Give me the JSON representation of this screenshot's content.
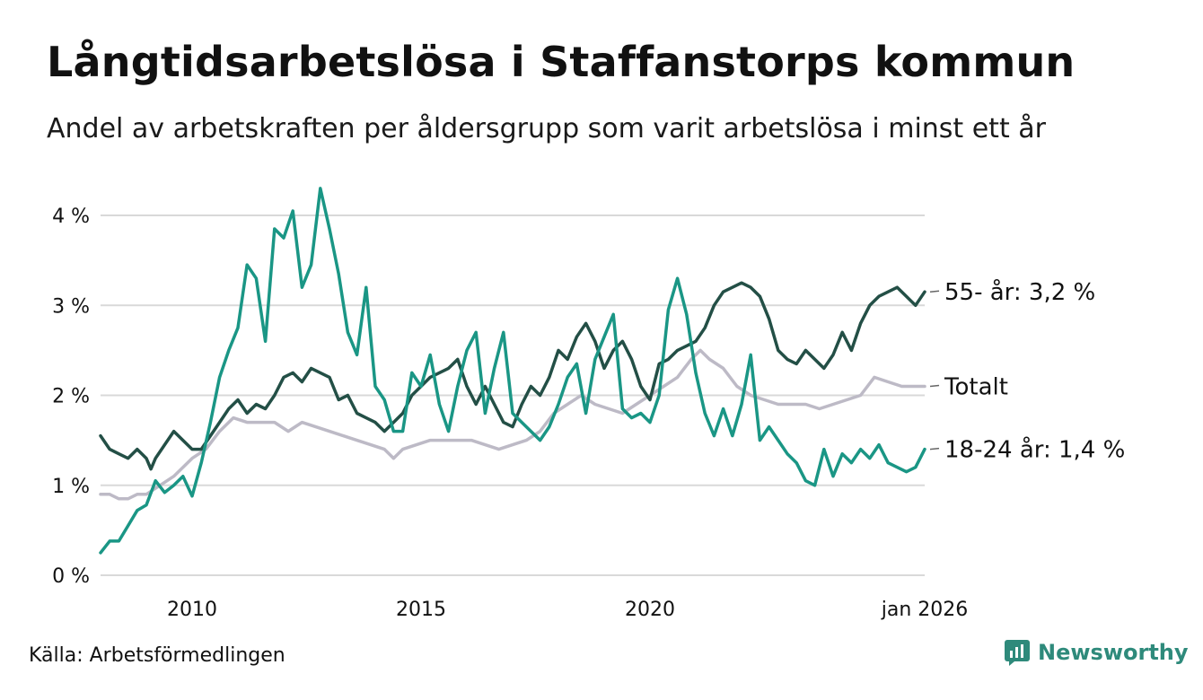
{
  "title": "Långtidsarbetslösa i Staffanstorps kommun",
  "subtitle": "Andel av arbetskraften per åldersgrupp som varit arbetslösa i minst ett år",
  "source": "Källa: Arbetsförmedlingen",
  "brand": "Newsworthy",
  "colors": {
    "age55": "#234f46",
    "total": "#bdbac6",
    "age1824": "#1a9685",
    "grid": "#d9d9d9",
    "brand": "#2e8a7b"
  },
  "chart_data": {
    "type": "line",
    "title": "Långtidsarbetslösa i Staffanstorps kommun",
    "xlabel": "",
    "ylabel": "",
    "xlim": [
      2008.0,
      2026.0
    ],
    "ylim": [
      0,
      4
    ],
    "y_ticks": [
      {
        "value": 0,
        "label": "0 %"
      },
      {
        "value": 1,
        "label": "1 %"
      },
      {
        "value": 2,
        "label": "2 %"
      },
      {
        "value": 3,
        "label": "3 %"
      },
      {
        "value": 4,
        "label": "4 %"
      }
    ],
    "x_ticks": [
      {
        "value": 2010,
        "label": "2010"
      },
      {
        "value": 2015,
        "label": "2015"
      },
      {
        "value": 2020,
        "label": "2020"
      },
      {
        "value": 2026,
        "label": "jan 2026"
      }
    ],
    "series": [
      {
        "name": "Totalt",
        "label": "Totalt",
        "color_key": "total",
        "points": [
          [
            2008.0,
            0.9
          ],
          [
            2008.2,
            0.9
          ],
          [
            2008.4,
            0.85
          ],
          [
            2008.6,
            0.85
          ],
          [
            2008.8,
            0.9
          ],
          [
            2009.0,
            0.9
          ],
          [
            2009.3,
            1.0
          ],
          [
            2009.6,
            1.1
          ],
          [
            2009.8,
            1.2
          ],
          [
            2010.0,
            1.3
          ],
          [
            2010.3,
            1.4
          ],
          [
            2010.6,
            1.6
          ],
          [
            2010.9,
            1.75
          ],
          [
            2011.2,
            1.7
          ],
          [
            2011.5,
            1.7
          ],
          [
            2011.8,
            1.7
          ],
          [
            2012.1,
            1.6
          ],
          [
            2012.4,
            1.7
          ],
          [
            2012.7,
            1.65
          ],
          [
            2013.0,
            1.6
          ],
          [
            2013.3,
            1.55
          ],
          [
            2013.6,
            1.5
          ],
          [
            2013.9,
            1.45
          ],
          [
            2014.2,
            1.4
          ],
          [
            2014.4,
            1.3
          ],
          [
            2014.6,
            1.4
          ],
          [
            2014.9,
            1.45
          ],
          [
            2015.2,
            1.5
          ],
          [
            2015.5,
            1.5
          ],
          [
            2015.8,
            1.5
          ],
          [
            2016.1,
            1.5
          ],
          [
            2016.4,
            1.45
          ],
          [
            2016.7,
            1.4
          ],
          [
            2017.0,
            1.45
          ],
          [
            2017.3,
            1.5
          ],
          [
            2017.6,
            1.6
          ],
          [
            2017.9,
            1.8
          ],
          [
            2018.2,
            1.9
          ],
          [
            2018.5,
            2.0
          ],
          [
            2018.8,
            1.9
          ],
          [
            2019.1,
            1.85
          ],
          [
            2019.4,
            1.8
          ],
          [
            2019.7,
            1.9
          ],
          [
            2020.0,
            2.0
          ],
          [
            2020.3,
            2.1
          ],
          [
            2020.6,
            2.2
          ],
          [
            2020.9,
            2.4
          ],
          [
            2021.1,
            2.5
          ],
          [
            2021.3,
            2.4
          ],
          [
            2021.6,
            2.3
          ],
          [
            2021.9,
            2.1
          ],
          [
            2022.2,
            2.0
          ],
          [
            2022.5,
            1.95
          ],
          [
            2022.8,
            1.9
          ],
          [
            2023.1,
            1.9
          ],
          [
            2023.4,
            1.9
          ],
          [
            2023.7,
            1.85
          ],
          [
            2024.0,
            1.9
          ],
          [
            2024.3,
            1.95
          ],
          [
            2024.6,
            2.0
          ],
          [
            2024.9,
            2.2
          ],
          [
            2025.2,
            2.15
          ],
          [
            2025.5,
            2.1
          ],
          [
            2025.8,
            2.1
          ],
          [
            2026.0,
            2.1
          ]
        ]
      },
      {
        "name": "55- år",
        "label": "55- år: 3,2 %",
        "color_key": "age55",
        "points": [
          [
            2008.0,
            1.55
          ],
          [
            2008.2,
            1.4
          ],
          [
            2008.4,
            1.35
          ],
          [
            2008.6,
            1.3
          ],
          [
            2008.8,
            1.4
          ],
          [
            2009.0,
            1.3
          ],
          [
            2009.1,
            1.18
          ],
          [
            2009.2,
            1.3
          ],
          [
            2009.4,
            1.45
          ],
          [
            2009.6,
            1.6
          ],
          [
            2009.8,
            1.5
          ],
          [
            2010.0,
            1.4
          ],
          [
            2010.2,
            1.4
          ],
          [
            2010.4,
            1.55
          ],
          [
            2010.6,
            1.7
          ],
          [
            2010.8,
            1.85
          ],
          [
            2011.0,
            1.95
          ],
          [
            2011.2,
            1.8
          ],
          [
            2011.4,
            1.9
          ],
          [
            2011.6,
            1.85
          ],
          [
            2011.8,
            2.0
          ],
          [
            2012.0,
            2.2
          ],
          [
            2012.2,
            2.25
          ],
          [
            2012.4,
            2.15
          ],
          [
            2012.6,
            2.3
          ],
          [
            2012.8,
            2.25
          ],
          [
            2013.0,
            2.2
          ],
          [
            2013.2,
            1.95
          ],
          [
            2013.4,
            2.0
          ],
          [
            2013.6,
            1.8
          ],
          [
            2013.8,
            1.75
          ],
          [
            2014.0,
            1.7
          ],
          [
            2014.2,
            1.6
          ],
          [
            2014.4,
            1.7
          ],
          [
            2014.6,
            1.8
          ],
          [
            2014.8,
            2.0
          ],
          [
            2015.0,
            2.1
          ],
          [
            2015.2,
            2.2
          ],
          [
            2015.4,
            2.25
          ],
          [
            2015.6,
            2.3
          ],
          [
            2015.8,
            2.4
          ],
          [
            2016.0,
            2.1
          ],
          [
            2016.2,
            1.9
          ],
          [
            2016.4,
            2.1
          ],
          [
            2016.6,
            1.9
          ],
          [
            2016.8,
            1.7
          ],
          [
            2017.0,
            1.65
          ],
          [
            2017.2,
            1.9
          ],
          [
            2017.4,
            2.1
          ],
          [
            2017.6,
            2.0
          ],
          [
            2017.8,
            2.2
          ],
          [
            2018.0,
            2.5
          ],
          [
            2018.2,
            2.4
          ],
          [
            2018.4,
            2.65
          ],
          [
            2018.6,
            2.8
          ],
          [
            2018.8,
            2.6
          ],
          [
            2019.0,
            2.3
          ],
          [
            2019.2,
            2.5
          ],
          [
            2019.4,
            2.6
          ],
          [
            2019.6,
            2.4
          ],
          [
            2019.8,
            2.1
          ],
          [
            2020.0,
            1.95
          ],
          [
            2020.2,
            2.35
          ],
          [
            2020.4,
            2.4
          ],
          [
            2020.6,
            2.5
          ],
          [
            2020.8,
            2.55
          ],
          [
            2021.0,
            2.6
          ],
          [
            2021.2,
            2.75
          ],
          [
            2021.4,
            3.0
          ],
          [
            2021.6,
            3.15
          ],
          [
            2021.8,
            3.2
          ],
          [
            2022.0,
            3.25
          ],
          [
            2022.2,
            3.2
          ],
          [
            2022.4,
            3.1
          ],
          [
            2022.6,
            2.85
          ],
          [
            2022.8,
            2.5
          ],
          [
            2023.0,
            2.4
          ],
          [
            2023.2,
            2.35
          ],
          [
            2023.4,
            2.5
          ],
          [
            2023.6,
            2.4
          ],
          [
            2023.8,
            2.3
          ],
          [
            2024.0,
            2.45
          ],
          [
            2024.2,
            2.7
          ],
          [
            2024.4,
            2.5
          ],
          [
            2024.6,
            2.8
          ],
          [
            2024.8,
            3.0
          ],
          [
            2025.0,
            3.1
          ],
          [
            2025.2,
            3.15
          ],
          [
            2025.4,
            3.2
          ],
          [
            2025.6,
            3.1
          ],
          [
            2025.8,
            3.0
          ],
          [
            2026.0,
            3.15
          ]
        ]
      },
      {
        "name": "18-24 år",
        "label": "18-24 år: 1,4 %",
        "color_key": "age1824",
        "points": [
          [
            2008.0,
            0.25
          ],
          [
            2008.2,
            0.38
          ],
          [
            2008.4,
            0.38
          ],
          [
            2008.6,
            0.55
          ],
          [
            2008.8,
            0.72
          ],
          [
            2009.0,
            0.78
          ],
          [
            2009.2,
            1.05
          ],
          [
            2009.4,
            0.92
          ],
          [
            2009.6,
            1.0
          ],
          [
            2009.8,
            1.1
          ],
          [
            2010.0,
            0.88
          ],
          [
            2010.2,
            1.25
          ],
          [
            2010.4,
            1.7
          ],
          [
            2010.6,
            2.2
          ],
          [
            2010.8,
            2.5
          ],
          [
            2011.0,
            2.75
          ],
          [
            2011.2,
            3.45
          ],
          [
            2011.4,
            3.3
          ],
          [
            2011.6,
            2.6
          ],
          [
            2011.8,
            3.85
          ],
          [
            2012.0,
            3.75
          ],
          [
            2012.2,
            4.05
          ],
          [
            2012.4,
            3.2
          ],
          [
            2012.6,
            3.45
          ],
          [
            2012.8,
            4.3
          ],
          [
            2013.0,
            3.85
          ],
          [
            2013.2,
            3.35
          ],
          [
            2013.4,
            2.7
          ],
          [
            2013.6,
            2.45
          ],
          [
            2013.8,
            3.2
          ],
          [
            2014.0,
            2.1
          ],
          [
            2014.2,
            1.95
          ],
          [
            2014.4,
            1.6
          ],
          [
            2014.6,
            1.6
          ],
          [
            2014.8,
            2.25
          ],
          [
            2015.0,
            2.1
          ],
          [
            2015.2,
            2.45
          ],
          [
            2015.4,
            1.9
          ],
          [
            2015.6,
            1.6
          ],
          [
            2015.8,
            2.1
          ],
          [
            2016.0,
            2.5
          ],
          [
            2016.2,
            2.7
          ],
          [
            2016.4,
            1.8
          ],
          [
            2016.6,
            2.3
          ],
          [
            2016.8,
            2.7
          ],
          [
            2017.0,
            1.8
          ],
          [
            2017.2,
            1.7
          ],
          [
            2017.4,
            1.6
          ],
          [
            2017.6,
            1.5
          ],
          [
            2017.8,
            1.65
          ],
          [
            2018.0,
            1.9
          ],
          [
            2018.2,
            2.2
          ],
          [
            2018.4,
            2.35
          ],
          [
            2018.6,
            1.8
          ],
          [
            2018.8,
            2.4
          ],
          [
            2019.0,
            2.65
          ],
          [
            2019.2,
            2.9
          ],
          [
            2019.4,
            1.85
          ],
          [
            2019.6,
            1.75
          ],
          [
            2019.8,
            1.8
          ],
          [
            2020.0,
            1.7
          ],
          [
            2020.2,
            2.0
          ],
          [
            2020.4,
            2.95
          ],
          [
            2020.6,
            3.3
          ],
          [
            2020.8,
            2.9
          ],
          [
            2021.0,
            2.25
          ],
          [
            2021.2,
            1.8
          ],
          [
            2021.4,
            1.55
          ],
          [
            2021.6,
            1.85
          ],
          [
            2021.8,
            1.55
          ],
          [
            2022.0,
            1.9
          ],
          [
            2022.2,
            2.45
          ],
          [
            2022.4,
            1.5
          ],
          [
            2022.6,
            1.65
          ],
          [
            2022.8,
            1.5
          ],
          [
            2023.0,
            1.35
          ],
          [
            2023.2,
            1.25
          ],
          [
            2023.4,
            1.05
          ],
          [
            2023.6,
            1.0
          ],
          [
            2023.8,
            1.4
          ],
          [
            2024.0,
            1.1
          ],
          [
            2024.2,
            1.35
          ],
          [
            2024.4,
            1.25
          ],
          [
            2024.6,
            1.4
          ],
          [
            2024.8,
            1.3
          ],
          [
            2025.0,
            1.45
          ],
          [
            2025.2,
            1.25
          ],
          [
            2025.4,
            1.2
          ],
          [
            2025.6,
            1.15
          ],
          [
            2025.8,
            1.2
          ],
          [
            2026.0,
            1.4
          ]
        ]
      }
    ]
  }
}
